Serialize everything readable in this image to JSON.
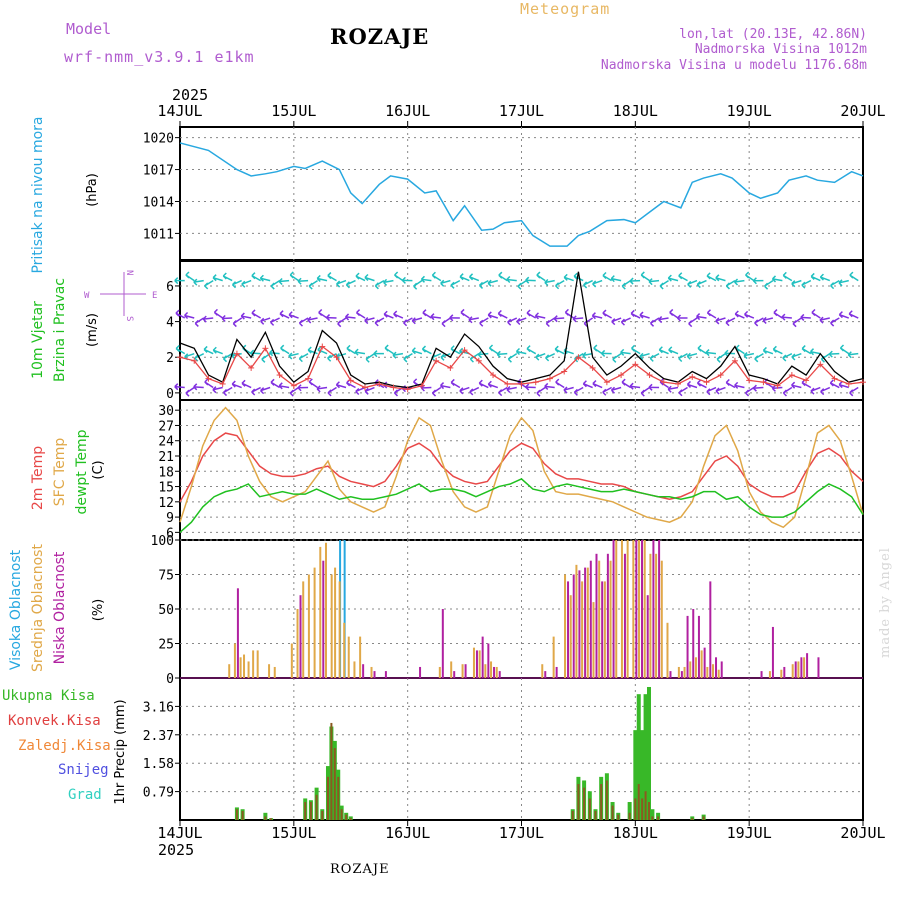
{
  "header": {
    "model_label": "Model",
    "model_version": "wrf-nmm_v3.9.1 e1km",
    "place": "ROZAJE",
    "meteogram": "Meteogram",
    "coords": "lon,lat (20.13E, 42.86N)",
    "elevation": "Nadmorska Visina 1012m",
    "model_elevation": "Nadmorska Visina u modelu 1176.68m"
  },
  "footer": {
    "place": "ROZAJE",
    "watermark": "made by Angel"
  },
  "time_axis": {
    "year": "2025",
    "labels": [
      "14JUL",
      "15JUL",
      "16JUL",
      "17JUL",
      "18JUL",
      "19JUL",
      "20JUL"
    ],
    "days": 6,
    "steps_per_day": 24
  },
  "panel_labels": {
    "pressure": {
      "title": "Pritisak na nivou mora",
      "unit": "(hPa)"
    },
    "wind": {
      "title1": "10m Vjetar",
      "title2": "Brzina i Pravac",
      "unit": "(m/s)",
      "compass_n": "N",
      "compass_s": "S",
      "compass_w": "W",
      "compass_e": "E"
    },
    "temp": {
      "t2m": "2m Temp",
      "sfc": "SFC Temp",
      "dew": "dewpt Temp",
      "unit": "(C)"
    },
    "cloud": {
      "high": "Visoka Oblacnost",
      "mid": "Srednja Oblacnost",
      "low": "Niska Oblacnost",
      "unit": "(%)"
    },
    "precip": {
      "total": "Ukupna Kisa",
      "conv": "Konvek.Kisa",
      "frozen": "Zaledj.Kisa",
      "snow": "Snijeg",
      "hail": "Grad",
      "unit": "1hr Precip (mm)"
    }
  },
  "colors": {
    "pressure": "#28a8e0",
    "t2m": "#e84848",
    "sfc": "#e0a848",
    "dew": "#20c020",
    "high": "#28a8e0",
    "mid": "#e0a848",
    "low": "#b020a0",
    "total": "#38b828",
    "conv": "#e04040",
    "frozen": "#f08838",
    "snow": "#5050e0",
    "hail": "#30d0c0",
    "wind_max": "#000000",
    "wind_avg": "#e84848",
    "purple_text": "#b05ccf",
    "grid": "#888888"
  },
  "chart_data": [
    {
      "type": "line",
      "panel": "pressure",
      "ylabel": "(hPa)",
      "ylim": [
        1008.5,
        1021
      ],
      "yticks": [
        1011,
        1014,
        1017,
        1020
      ],
      "x_days": [
        0,
        0.25,
        0.5,
        0.625,
        0.75,
        0.85,
        1.0,
        1.1,
        1.25,
        1.4,
        1.5,
        1.6,
        1.75,
        1.85,
        2.0,
        2.15,
        2.25,
        2.4,
        2.5,
        2.65,
        2.75,
        2.85,
        3.0,
        3.1,
        3.25,
        3.4,
        3.5,
        3.6,
        3.75,
        3.9,
        4.0,
        4.1,
        4.25,
        4.4,
        4.5,
        4.6,
        4.75,
        4.85,
        5.0,
        5.1,
        5.25,
        5.35,
        5.5,
        5.6,
        5.75,
        5.9,
        6.0
      ],
      "series": [
        {
          "values": [
            1019.5,
            1018.8,
            1017,
            1016.4,
            1016.6,
            1016.8,
            1017.3,
            1017.1,
            1017.8,
            1017.0,
            1014.8,
            1013.8,
            1015.6,
            1016.4,
            1016.1,
            1014.8,
            1015.0,
            1012.2,
            1013.6,
            1011.3,
            1011.4,
            1012.0,
            1012.2,
            1010.8,
            1009.8,
            1009.8,
            1010.8,
            1011.2,
            1012.2,
            1012.3,
            1012.0,
            1012.8,
            1014.0,
            1013.4,
            1015.8,
            1016.2,
            1016.6,
            1016.2,
            1014.8,
            1014.3,
            1014.8,
            1016.0,
            1016.4,
            1016.0,
            1015.8,
            1016.8,
            1016.4
          ]
        }
      ]
    },
    {
      "type": "line",
      "panel": "wind",
      "ylabel": "(m/s)",
      "ylim": [
        -0.4,
        7.4
      ],
      "yticks": [
        0,
        2,
        4,
        6
      ],
      "x_days": [
        0,
        0.125,
        0.25,
        0.375,
        0.5,
        0.625,
        0.75,
        0.875,
        1.0,
        1.125,
        1.25,
        1.375,
        1.5,
        1.625,
        1.75,
        1.875,
        2.0,
        2.125,
        2.25,
        2.375,
        2.5,
        2.625,
        2.75,
        2.875,
        3.0,
        3.125,
        3.25,
        3.375,
        3.5,
        3.625,
        3.75,
        3.875,
        4.0,
        4.125,
        4.25,
        4.375,
        4.5,
        4.625,
        4.75,
        4.875,
        5.0,
        5.125,
        5.25,
        5.375,
        5.5,
        5.625,
        5.75,
        5.875,
        6.0
      ],
      "series": [
        {
          "name": "max",
          "values": [
            2.8,
            2.5,
            1.0,
            0.6,
            3.0,
            2.0,
            3.4,
            1.5,
            0.6,
            1.2,
            3.5,
            2.8,
            1.0,
            0.5,
            0.6,
            0.4,
            0.3,
            0.5,
            2.5,
            2.0,
            3.3,
            2.6,
            1.5,
            0.8,
            0.6,
            0.8,
            1.0,
            1.8,
            6.8,
            2.0,
            1.0,
            1.5,
            2.2,
            1.4,
            0.8,
            0.6,
            1.2,
            0.8,
            1.5,
            2.6,
            1.0,
            0.8,
            0.5,
            1.5,
            1.0,
            2.2,
            1.2,
            0.6,
            0.8
          ]
        },
        {
          "name": "avg",
          "values": [
            2.0,
            1.8,
            0.8,
            0.5,
            2.2,
            1.4,
            2.5,
            1.0,
            0.4,
            0.8,
            2.6,
            2.0,
            0.7,
            0.3,
            0.5,
            0.3,
            0.2,
            0.4,
            1.8,
            1.4,
            2.4,
            1.8,
            1.0,
            0.5,
            0.5,
            0.6,
            0.8,
            1.2,
            2.0,
            1.4,
            0.6,
            1.0,
            1.6,
            1.0,
            0.6,
            0.5,
            0.9,
            0.6,
            1.0,
            1.8,
            0.7,
            0.6,
            0.4,
            1.0,
            0.7,
            1.6,
            0.8,
            0.5,
            0.6
          ]
        }
      ]
    },
    {
      "type": "line",
      "panel": "temperature",
      "ylabel": "(C)",
      "ylim": [
        4.5,
        32
      ],
      "yticks": [
        6,
        9,
        12,
        15,
        18,
        21,
        24,
        27,
        30
      ],
      "x_days": [
        0,
        0.1,
        0.2,
        0.3,
        0.4,
        0.5,
        0.6,
        0.7,
        0.8,
        0.9,
        1.0,
        1.1,
        1.2,
        1.3,
        1.4,
        1.5,
        1.6,
        1.7,
        1.8,
        1.9,
        2.0,
        2.1,
        2.2,
        2.3,
        2.4,
        2.5,
        2.6,
        2.7,
        2.8,
        2.9,
        3.0,
        3.1,
        3.2,
        3.3,
        3.4,
        3.5,
        3.6,
        3.7,
        3.8,
        3.9,
        4.0,
        4.1,
        4.2,
        4.3,
        4.4,
        4.5,
        4.6,
        4.7,
        4.8,
        4.9,
        5.0,
        5.1,
        5.2,
        5.3,
        5.4,
        5.5,
        5.6,
        5.7,
        5.8,
        5.9,
        6.0
      ],
      "series": [
        {
          "name": "2m Temp",
          "values": [
            12,
            16,
            21,
            24,
            25.5,
            25,
            22,
            19,
            17.5,
            17,
            17,
            17.5,
            18.5,
            19,
            17,
            16,
            15.5,
            15,
            16,
            19,
            22.5,
            23.5,
            22,
            19,
            17,
            16,
            15.5,
            16,
            19,
            22,
            23.5,
            22.5,
            19.5,
            17.5,
            16.5,
            16.5,
            16,
            15.5,
            15.5,
            15,
            14,
            13.5,
            13,
            12.5,
            13,
            14,
            17,
            20,
            21,
            19,
            15.5,
            14,
            13,
            13,
            14,
            18,
            21.5,
            22.5,
            21,
            18,
            16
          ]
        },
        {
          "name": "SFC Temp",
          "values": [
            8,
            15,
            23,
            28,
            30.5,
            28,
            21,
            16,
            13,
            12,
            13,
            14,
            17,
            20,
            14.5,
            12,
            11,
            10,
            11,
            17,
            24,
            28.5,
            27,
            20,
            14,
            11,
            10,
            11,
            18,
            25,
            28.5,
            26,
            18,
            14,
            13.5,
            13.5,
            13,
            12.5,
            12,
            11,
            10,
            9,
            8.5,
            8,
            9,
            12,
            19,
            25,
            27,
            22,
            14,
            10,
            8,
            7,
            9,
            17,
            25.5,
            27,
            24,
            17,
            9.5
          ]
        },
        {
          "name": "dewpt Temp",
          "values": [
            6,
            8,
            11,
            13,
            14,
            14.5,
            15.5,
            13,
            13.5,
            14,
            13.5,
            13.5,
            14.5,
            13.5,
            12.5,
            13,
            12.5,
            12.5,
            13,
            13.5,
            14.5,
            15.5,
            14,
            14.5,
            14.5,
            14,
            13,
            14,
            15,
            15.5,
            16.5,
            14.5,
            14,
            15,
            15.5,
            15,
            14.5,
            14,
            14,
            14.5,
            14,
            13.5,
            13,
            13,
            12.5,
            13,
            14,
            14,
            12.5,
            13,
            11,
            9.5,
            9,
            9,
            10,
            12,
            14,
            15.5,
            14.5,
            13,
            9.5
          ]
        }
      ]
    },
    {
      "type": "bar",
      "panel": "cloud",
      "ylabel": "(%)",
      "ylim": [
        0,
        100
      ],
      "yticks": [
        0,
        25,
        50,
        75,
        100
      ],
      "x_days": [
        0.45,
        0.5,
        0.55,
        0.58,
        0.62,
        0.66,
        0.7,
        0.8,
        0.85,
        1.0,
        1.05,
        1.1,
        1.15,
        1.2,
        1.25,
        1.3,
        1.35,
        1.38,
        1.42,
        1.46,
        1.5,
        1.55,
        1.6,
        1.7,
        1.8,
        2.1,
        2.3,
        2.4,
        2.5,
        2.6,
        2.65,
        2.7,
        2.75,
        2.8,
        3.2,
        3.3,
        3.4,
        3.45,
        3.5,
        3.55,
        3.6,
        3.65,
        3.7,
        3.75,
        3.8,
        3.85,
        3.9,
        3.95,
        4.0,
        4.05,
        4.1,
        4.15,
        4.2,
        4.25,
        4.3,
        4.4,
        4.45,
        4.5,
        4.55,
        4.6,
        4.65,
        4.7,
        4.75,
        5.1,
        5.2,
        5.3,
        5.4,
        5.45,
        5.5,
        5.6
      ],
      "series": [
        {
          "name": "Visoka Oblacnost",
          "values": [
            0,
            0,
            0,
            0,
            0,
            0,
            0,
            0,
            0,
            0,
            0,
            0,
            0,
            0,
            0,
            0,
            0,
            100,
            100,
            0,
            0,
            0,
            0,
            0,
            0,
            0,
            0,
            0,
            0,
            0,
            0,
            0,
            0,
            0,
            0,
            0,
            0,
            0,
            0,
            0,
            0,
            0,
            0,
            0,
            0,
            0,
            0,
            0,
            0,
            0,
            0,
            0,
            0,
            0,
            0,
            0,
            0,
            0,
            0,
            0,
            0,
            0,
            0,
            0,
            0,
            0,
            0,
            0,
            0,
            0
          ]
        },
        {
          "name": "Srednja Oblacnost",
          "values": [
            10,
            25,
            15,
            17,
            12,
            20,
            20,
            10,
            8,
            25,
            50,
            70,
            75,
            80,
            95,
            98,
            75,
            80,
            70,
            40,
            30,
            12,
            30,
            8,
            0,
            0,
            8,
            12,
            10,
            22,
            20,
            10,
            12,
            8,
            10,
            30,
            75,
            60,
            82,
            70,
            80,
            55,
            85,
            70,
            85,
            100,
            100,
            100,
            100,
            100,
            100,
            90,
            90,
            85,
            40,
            8,
            8,
            12,
            15,
            20,
            8,
            10,
            6,
            0,
            5,
            6,
            10,
            12,
            15,
            0
          ]
        },
        {
          "name": "Niska Oblacnost",
          "values": [
            0,
            65,
            0,
            0,
            0,
            0,
            0,
            0,
            0,
            0,
            60,
            0,
            0,
            0,
            85,
            0,
            0,
            0,
            0,
            0,
            0,
            0,
            10,
            5,
            5,
            8,
            50,
            5,
            10,
            20,
            30,
            25,
            8,
            5,
            5,
            8,
            70,
            75,
            78,
            80,
            85,
            90,
            70,
            90,
            100,
            0,
            90,
            0,
            100,
            100,
            60,
            100,
            100,
            0,
            5,
            5,
            45,
            50,
            45,
            22,
            70,
            15,
            12,
            5,
            37,
            8,
            12,
            15,
            18,
            15
          ]
        }
      ]
    },
    {
      "type": "bar",
      "panel": "precip",
      "ylabel": "1hr Precip (mm)",
      "ylim": [
        0,
        3.95
      ],
      "yticks": [
        0.79,
        1.58,
        2.37,
        3.16
      ],
      "x_days": [
        0.5,
        0.55,
        0.75,
        0.8,
        1.1,
        1.15,
        1.2,
        1.25,
        1.3,
        1.33,
        1.36,
        1.39,
        1.42,
        1.46,
        1.5,
        3.45,
        3.5,
        3.55,
        3.6,
        3.65,
        3.7,
        3.75,
        3.8,
        3.85,
        3.95,
        4.0,
        4.03,
        4.06,
        4.09,
        4.12,
        4.15,
        4.2,
        4.5,
        4.6
      ],
      "series": [
        {
          "name": "Ukupna Kisa",
          "values": [
            0.35,
            0.3,
            0.2,
            0.05,
            0.6,
            0.55,
            0.9,
            0.3,
            1.5,
            2.6,
            2.2,
            1.4,
            0.4,
            0.2,
            0.1,
            0.3,
            1.2,
            1.1,
            0.8,
            0.3,
            1.2,
            1.3,
            0.5,
            0.2,
            0.5,
            2.5,
            3.5,
            2.5,
            3.5,
            3.7,
            0.3,
            0.2,
            0.1,
            0.15
          ]
        },
        {
          "name": "Konvek.Kisa",
          "values": [
            0.3,
            0.25,
            0.1,
            0.05,
            0.5,
            0.5,
            0.7,
            0.25,
            1.2,
            2.7,
            2.0,
            1.2,
            0.3,
            0.15,
            0.05,
            0.25,
            1.0,
            0.9,
            0.6,
            0.25,
            1.0,
            1.1,
            0.4,
            0.15,
            0.2,
            0.6,
            1.0,
            0.6,
            0.8,
            0.5,
            0.1,
            0.1,
            0.05,
            0.1
          ]
        }
      ]
    }
  ]
}
